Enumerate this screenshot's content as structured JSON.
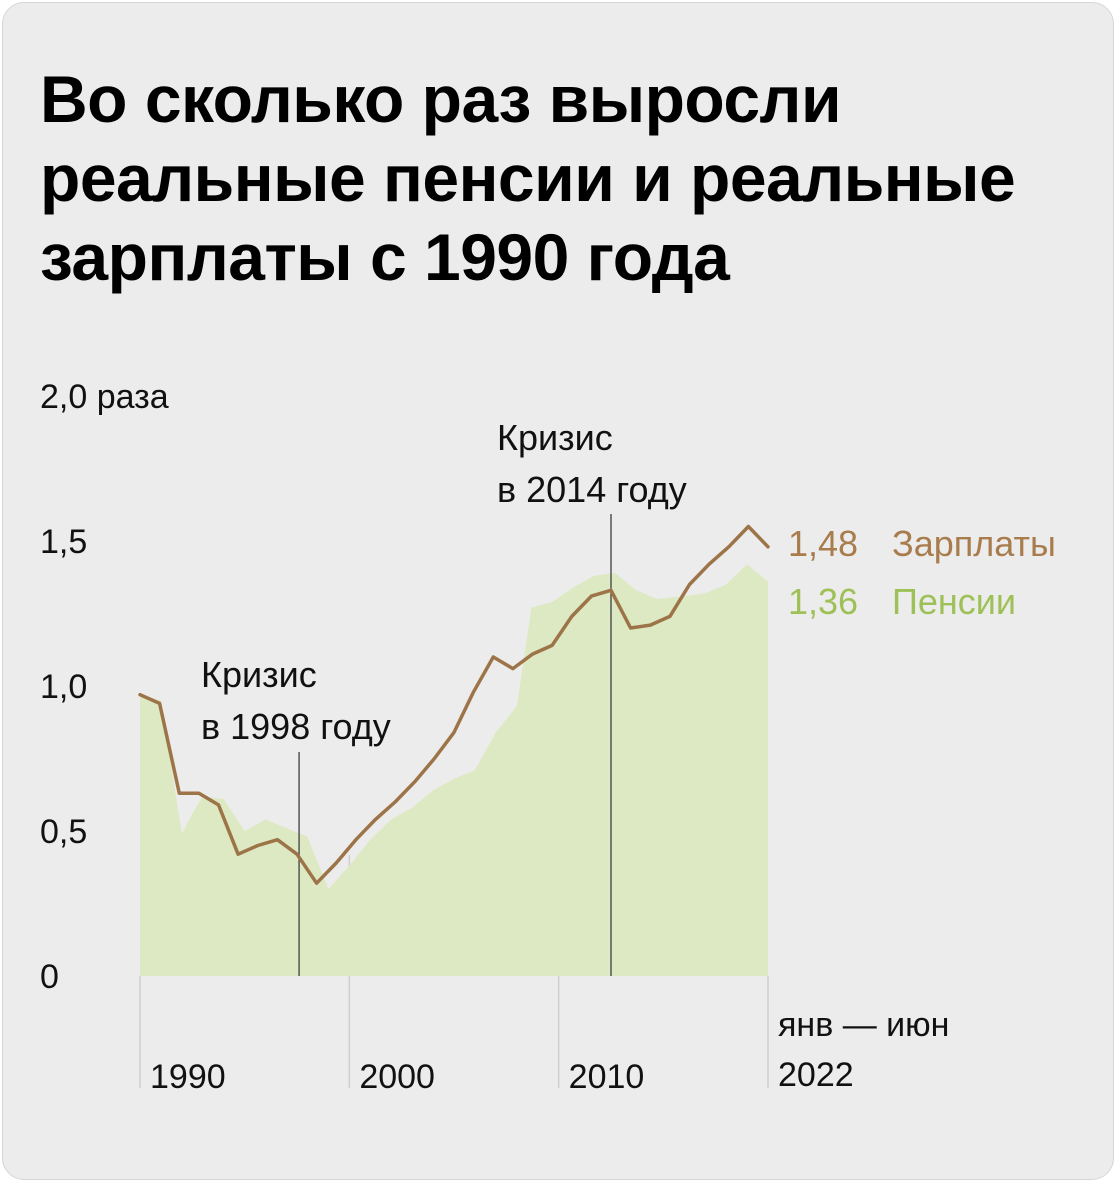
{
  "colors": {
    "background": "#ececec",
    "wages_line": "#9c7448",
    "wages_label": "#a87c4c",
    "pensions_area": "#dde9c3",
    "pensions_label": "#9ec157",
    "marker_line": "#555555",
    "decade_line": "#cfcfcf"
  },
  "chart_data": {
    "type": "area",
    "title": "Во сколько раз выросли реальные пенсии и реальные зарплаты с 1990 года",
    "ylim": [
      0,
      2.0
    ],
    "xlim": [
      1990,
      2020
    ],
    "y_ticks": [
      {
        "value": 0,
        "label": "0"
      },
      {
        "value": 0.5,
        "label": "0,5"
      },
      {
        "value": 1.0,
        "label": "1,0"
      },
      {
        "value": 1.5,
        "label": "1,5"
      },
      {
        "value": 2.0,
        "label": "2,0 раза"
      }
    ],
    "x_ticks": [
      {
        "value": 1990,
        "label": "1990"
      },
      {
        "value": 2000,
        "label": "2000"
      },
      {
        "value": 2010,
        "label": "2010"
      }
    ],
    "x_end": {
      "value": 2020,
      "label_lines": [
        "янв — июн",
        "2022"
      ]
    },
    "series": [
      {
        "name": "Пенсии",
        "kind": "area",
        "color": "#dde9c3",
        "end_value_label": "1,36",
        "points": [
          [
            1990,
            0.97
          ],
          [
            1991,
            0.95
          ],
          [
            1992,
            0.49
          ],
          [
            1992.5,
            0.56
          ],
          [
            1993,
            0.62
          ],
          [
            1994,
            0.61
          ],
          [
            1995,
            0.5
          ],
          [
            1996,
            0.54
          ],
          [
            1997,
            0.51
          ],
          [
            1998,
            0.48
          ],
          [
            1999,
            0.3
          ],
          [
            2000,
            0.38
          ],
          [
            2001,
            0.47
          ],
          [
            2002,
            0.54
          ],
          [
            2003,
            0.58
          ],
          [
            2004,
            0.64
          ],
          [
            2005,
            0.68
          ],
          [
            2006,
            0.71
          ],
          [
            2007,
            0.84
          ],
          [
            2008,
            0.93
          ],
          [
            2008.7,
            1.27
          ],
          [
            2009.7,
            1.29
          ],
          [
            2010.7,
            1.34
          ],
          [
            2011.7,
            1.38
          ],
          [
            2012.7,
            1.39
          ],
          [
            2013.7,
            1.33
          ],
          [
            2014.7,
            1.3
          ],
          [
            2016,
            1.31
          ],
          [
            2017,
            1.32
          ],
          [
            2018,
            1.35
          ],
          [
            2019,
            1.42
          ],
          [
            2020,
            1.36
          ]
        ]
      },
      {
        "name": "Зарплаты",
        "kind": "line",
        "color": "#9c7448",
        "end_value_label": "1,48",
        "points": [
          [
            1990,
            0.97
          ],
          [
            1991,
            0.94
          ],
          [
            1992,
            0.63
          ],
          [
            1993,
            0.63
          ],
          [
            1994,
            0.59
          ],
          [
            1995,
            0.42
          ],
          [
            1996,
            0.45
          ],
          [
            1997,
            0.47
          ],
          [
            1998,
            0.42
          ],
          [
            1999,
            0.32
          ],
          [
            2000,
            0.39
          ],
          [
            2001,
            0.47
          ],
          [
            2002,
            0.54
          ],
          [
            2003,
            0.6
          ],
          [
            2004,
            0.67
          ],
          [
            2005,
            0.75
          ],
          [
            2006,
            0.84
          ],
          [
            2007,
            0.98
          ],
          [
            2008,
            1.1
          ],
          [
            2009,
            1.06
          ],
          [
            2010,
            1.11
          ],
          [
            2011,
            1.14
          ],
          [
            2012,
            1.24
          ],
          [
            2013,
            1.31
          ],
          [
            2014,
            1.33
          ],
          [
            2015,
            1.2
          ],
          [
            2016,
            1.21
          ],
          [
            2017,
            1.24
          ],
          [
            2018,
            1.35
          ],
          [
            2019,
            1.42
          ],
          [
            2020,
            1.48
          ],
          [
            2021,
            1.55
          ],
          [
            2022,
            1.48
          ]
        ]
      }
    ],
    "annotations": [
      {
        "name": "crisis-1998",
        "x": 1998,
        "lines": [
          "Кризис",
          "в 1998 году"
        ]
      },
      {
        "name": "crisis-2014",
        "x": 2014,
        "lines": [
          "Кризис",
          "в 2014 году"
        ]
      }
    ],
    "legend_placement": "right-end"
  }
}
